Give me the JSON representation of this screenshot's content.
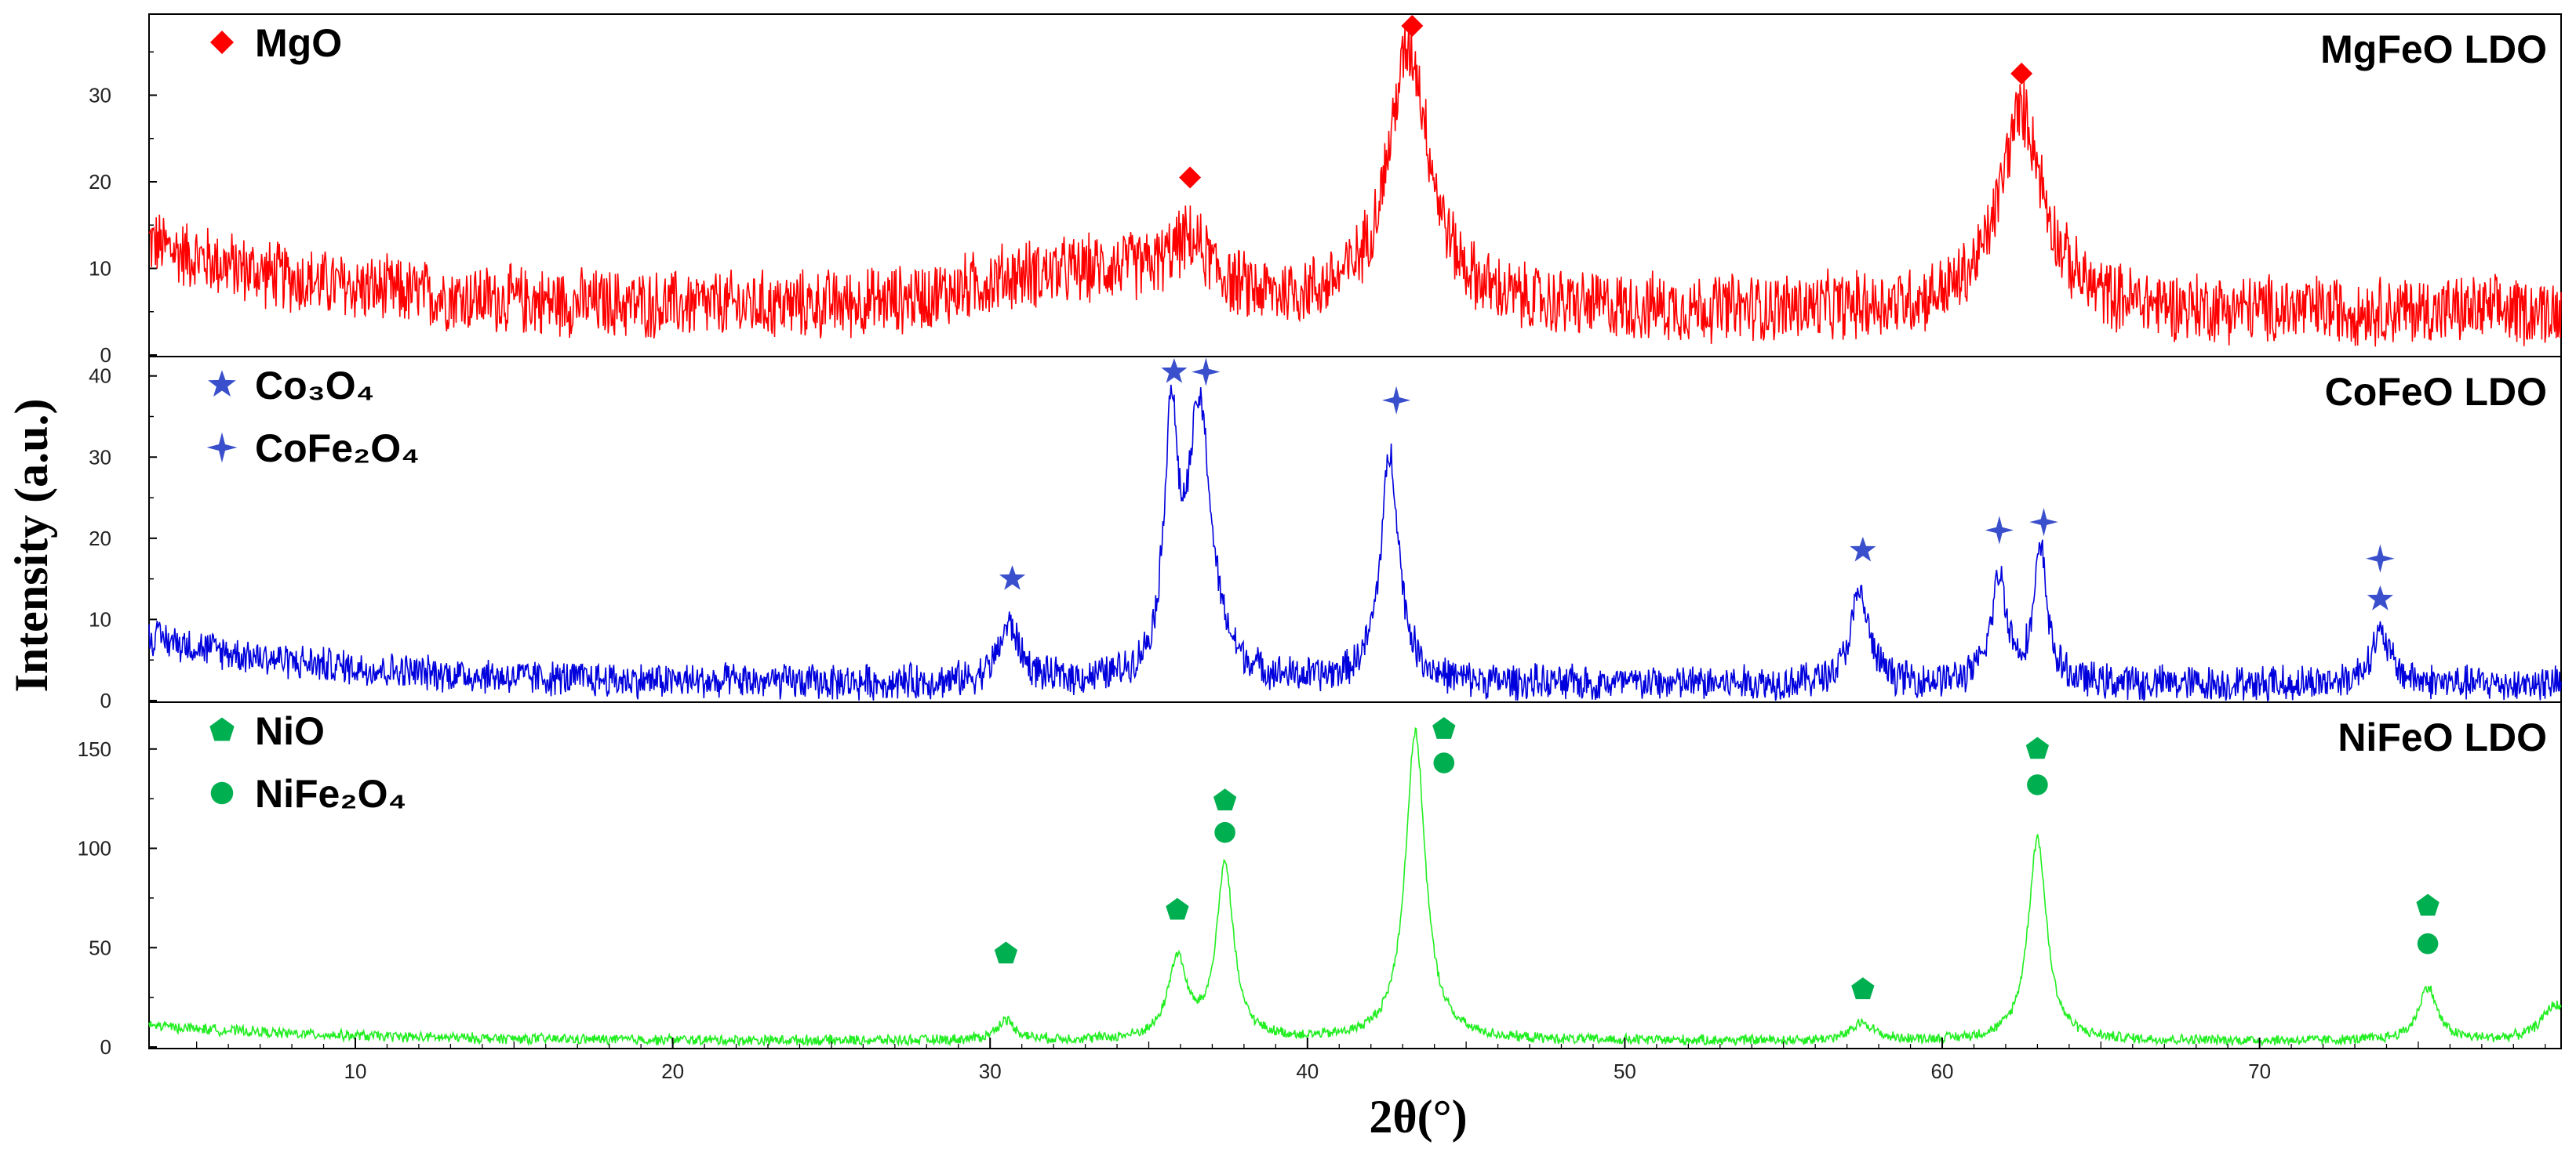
{
  "chart_data": {
    "type": "line",
    "ylabel": "Intensity (a.u.)",
    "xlabel": "2θ(°)",
    "xlim": [
      3.5,
      79.5
    ],
    "x_ticks": [
      10,
      20,
      30,
      40,
      50,
      60,
      70
    ],
    "panels": [
      {
        "title": "MgFeO LDO",
        "color": "#ff0000",
        "ylim": [
          0,
          39
        ],
        "y_ticks": [
          0,
          10,
          20,
          30
        ],
        "baseline": 5,
        "noise": 4.5,
        "shoulder_start": 3.5,
        "shoulder_height": 8,
        "peaks": [
          {
            "x": 36.3,
            "h": 6,
            "w": 0.9
          },
          {
            "x": 43.2,
            "h": 30,
            "w": 0.8
          },
          {
            "x": 62.5,
            "h": 23,
            "w": 0.85
          },
          {
            "x": 31.0,
            "h": 3,
            "w": 2.5
          },
          {
            "x": 34.0,
            "h": 3,
            "w": 2.0
          }
        ],
        "legend": [
          {
            "label": "MgO",
            "marker": "diamond"
          }
        ],
        "markers": [
          {
            "x": 36.3,
            "y": 20.5,
            "symbol": "diamond"
          },
          {
            "x": 43.3,
            "y": 38,
            "symbol": "diamond"
          },
          {
            "x": 62.5,
            "y": 32.5,
            "symbol": "diamond"
          }
        ]
      },
      {
        "title": "CoFeO LDO",
        "color": "#0000dd",
        "marker_color": "#3a4fcc",
        "ylim": [
          0,
          42
        ],
        "y_ticks": [
          0,
          10,
          20,
          30,
          40
        ],
        "baseline": 2,
        "noise": 2.5,
        "shoulder_start": 3.5,
        "shoulder_height": 6,
        "peaks": [
          {
            "x": 30.6,
            "h": 7,
            "w": 0.4
          },
          {
            "x": 35.7,
            "h": 30,
            "w": 0.25
          },
          {
            "x": 36.6,
            "h": 33,
            "w": 0.45
          },
          {
            "x": 42.6,
            "h": 28,
            "w": 0.35
          },
          {
            "x": 57.4,
            "h": 11,
            "w": 0.35
          },
          {
            "x": 61.8,
            "h": 13,
            "w": 0.3
          },
          {
            "x": 63.1,
            "h": 16,
            "w": 0.25
          },
          {
            "x": 73.8,
            "h": 6,
            "w": 0.4
          }
        ],
        "legend": [
          {
            "label": "Co₃O₄",
            "marker": "star5"
          },
          {
            "label": "CoFe₂O₄",
            "marker": "star4"
          }
        ],
        "markers": [
          {
            "x": 30.7,
            "y": 15,
            "symbol": "star5"
          },
          {
            "x": 35.8,
            "y": 40.5,
            "symbol": "star5"
          },
          {
            "x": 36.8,
            "y": 40.5,
            "symbol": "star4"
          },
          {
            "x": 42.8,
            "y": 37,
            "symbol": "star4"
          },
          {
            "x": 57.5,
            "y": 18.5,
            "symbol": "star5"
          },
          {
            "x": 61.8,
            "y": 21,
            "symbol": "star4"
          },
          {
            "x": 63.2,
            "y": 22,
            "symbol": "star4"
          },
          {
            "x": 73.8,
            "y": 17.5,
            "symbol": "star4"
          },
          {
            "x": 73.8,
            "y": 12.5,
            "symbol": "star5"
          }
        ]
      },
      {
        "title": "NiFeO LDO",
        "color": "#22ee22",
        "marker_color": "#00b050",
        "ylim": [
          0,
          172
        ],
        "y_ticks": [
          0,
          50,
          100,
          150
        ],
        "baseline": 3,
        "noise": 3,
        "shoulder_start": 3.5,
        "shoulder_height": 8,
        "peaks": [
          {
            "x": 30.5,
            "h": 10,
            "w": 0.35
          },
          {
            "x": 35.9,
            "h": 40,
            "w": 0.35
          },
          {
            "x": 37.4,
            "h": 88,
            "w": 0.32
          },
          {
            "x": 43.4,
            "h": 155,
            "w": 0.38
          },
          {
            "x": 57.5,
            "h": 9,
            "w": 0.4
          },
          {
            "x": 63.0,
            "h": 102,
            "w": 0.35
          },
          {
            "x": 75.3,
            "h": 27,
            "w": 0.35
          },
          {
            "x": 79.3,
            "h": 18,
            "w": 0.5
          }
        ],
        "legend": [
          {
            "label": "NiO",
            "marker": "pentagon"
          },
          {
            "label": "NiFe₂O₄",
            "marker": "circle"
          }
        ],
        "markers": [
          {
            "x": 30.5,
            "y": 47,
            "symbol": "pentagon"
          },
          {
            "x": 35.9,
            "y": 69,
            "symbol": "pentagon"
          },
          {
            "x": 37.4,
            "y": 124,
            "symbol": "pentagon"
          },
          {
            "x": 37.4,
            "y": 108,
            "symbol": "circle"
          },
          {
            "x": 44.3,
            "y": 160,
            "symbol": "pentagon"
          },
          {
            "x": 44.3,
            "y": 143,
            "symbol": "circle"
          },
          {
            "x": 57.5,
            "y": 29,
            "symbol": "pentagon"
          },
          {
            "x": 63.0,
            "y": 150,
            "symbol": "pentagon"
          },
          {
            "x": 63.0,
            "y": 132,
            "symbol": "circle"
          },
          {
            "x": 75.3,
            "y": 71,
            "symbol": "pentagon"
          },
          {
            "x": 75.3,
            "y": 52,
            "symbol": "circle"
          }
        ]
      }
    ]
  }
}
